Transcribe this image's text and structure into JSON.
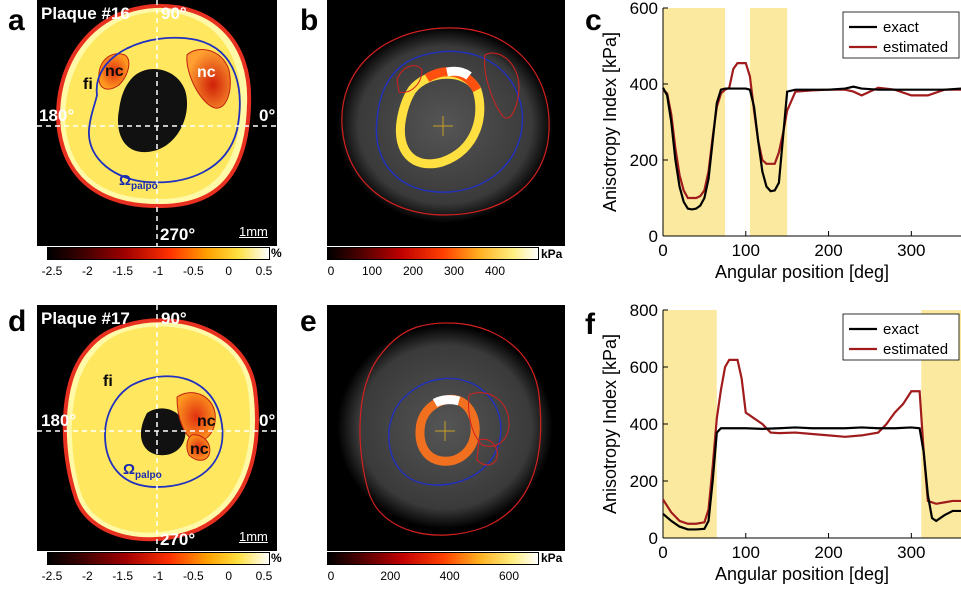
{
  "panels": {
    "a": {
      "letter": "a",
      "title": "Plaque #16",
      "angle_90": "90°",
      "angle_0": "0°",
      "angle_180": "180°",
      "angle_270": "270°",
      "fi": "fi",
      "nc1": "nc",
      "nc2": "nc",
      "omega": "Ω",
      "omega_sub": "palpo",
      "scale": "1mm"
    },
    "b": {
      "letter": "b"
    },
    "c": {
      "letter": "c"
    },
    "d": {
      "letter": "d",
      "title": "Plaque #17",
      "angle_90": "90°",
      "angle_0": "0°",
      "angle_180": "180°",
      "angle_270": "270°",
      "fi": "fi",
      "nc1": "nc",
      "nc2": "nc",
      "omega": "Ω",
      "omega_sub": "palpo",
      "scale": "1mm"
    },
    "e": {
      "letter": "e"
    },
    "f": {
      "letter": "f"
    }
  },
  "colorbars": {
    "strain_top": {
      "unit": "%",
      "ticks": [
        "-2.5",
        "-2",
        "-1.5",
        "-1",
        "-0.5",
        "0",
        "0.5"
      ]
    },
    "modulus_top": {
      "unit": "kPa",
      "ticks": [
        "0",
        "100",
        "200",
        "300",
        "400"
      ]
    },
    "strain_bottom": {
      "unit": "%",
      "ticks": [
        "-2.5",
        "-2",
        "-1.5",
        "-1",
        "-0.5",
        "0",
        "0.5"
      ]
    },
    "modulus_bottom": {
      "unit": "kPa",
      "ticks": [
        "0",
        "200",
        "400",
        "600"
      ]
    }
  },
  "colors": {
    "exact": "#000000",
    "estimated": "#a01c1c",
    "highlight": "#fbe9a0",
    "contour_red": "#d42020",
    "contour_blue": "#2030c0"
  },
  "chart_data": [
    {
      "type": "line",
      "panel": "c",
      "xlabel": "Angular position [deg]",
      "ylabel": "Anisotropy Index [kPa]",
      "xlim": [
        0,
        360
      ],
      "ylim": [
        0,
        600
      ],
      "xticks": [
        0,
        100,
        200,
        300
      ],
      "yticks": [
        0,
        200,
        400,
        600
      ],
      "legend": "top-right",
      "highlight_ranges": [
        [
          0,
          75
        ],
        [
          105,
          150
        ]
      ],
      "series": [
        {
          "name": "exact",
          "x": [
            0,
            5,
            10,
            15,
            20,
            25,
            30,
            35,
            40,
            45,
            50,
            55,
            60,
            65,
            70,
            75,
            80,
            85,
            90,
            100,
            105,
            110,
            115,
            120,
            125,
            130,
            135,
            140,
            145,
            150,
            160,
            180,
            200,
            220,
            230,
            240,
            260,
            280,
            300,
            320,
            340,
            360
          ],
          "values": [
            390,
            370,
            300,
            200,
            130,
            90,
            72,
            70,
            72,
            80,
            100,
            150,
            250,
            350,
            385,
            388,
            388,
            388,
            388,
            388,
            385,
            340,
            250,
            170,
            130,
            118,
            120,
            140,
            260,
            380,
            385,
            385,
            385,
            388,
            393,
            388,
            385,
            385,
            385,
            385,
            385,
            388
          ]
        },
        {
          "name": "estimated",
          "x": [
            0,
            5,
            10,
            15,
            20,
            25,
            30,
            35,
            40,
            45,
            50,
            55,
            60,
            65,
            70,
            75,
            80,
            85,
            90,
            100,
            105,
            110,
            115,
            120,
            125,
            130,
            135,
            140,
            145,
            150,
            160,
            180,
            200,
            220,
            230,
            240,
            260,
            280,
            300,
            320,
            340,
            360
          ],
          "values": [
            385,
            375,
            320,
            230,
            160,
            120,
            100,
            100,
            100,
            105,
            120,
            170,
            260,
            340,
            375,
            385,
            390,
            440,
            455,
            455,
            420,
            330,
            250,
            200,
            190,
            190,
            190,
            220,
            270,
            330,
            380,
            383,
            385,
            385,
            380,
            370,
            390,
            385,
            370,
            370,
            385,
            385
          ]
        }
      ]
    },
    {
      "type": "line",
      "panel": "f",
      "xlabel": "Angular position [deg]",
      "ylabel": "Anisotropy Index [kPa]",
      "xlim": [
        0,
        360
      ],
      "ylim": [
        0,
        800
      ],
      "xticks": [
        0,
        100,
        200,
        300
      ],
      "yticks": [
        0,
        200,
        400,
        600,
        800
      ],
      "legend": "top-right",
      "highlight_ranges": [
        [
          0,
          65
        ],
        [
          312,
          360
        ]
      ],
      "series": [
        {
          "name": "exact",
          "x": [
            0,
            10,
            20,
            30,
            40,
            50,
            55,
            60,
            65,
            70,
            80,
            100,
            120,
            140,
            160,
            180,
            200,
            220,
            240,
            260,
            280,
            300,
            310,
            315,
            320,
            325,
            330,
            340,
            350,
            360
          ],
          "values": [
            85,
            60,
            40,
            30,
            30,
            32,
            60,
            200,
            370,
            385,
            385,
            385,
            383,
            385,
            388,
            385,
            385,
            385,
            388,
            385,
            385,
            388,
            385,
            300,
            150,
            70,
            60,
            80,
            95,
            95
          ]
        },
        {
          "name": "estimated",
          "x": [
            0,
            10,
            20,
            30,
            40,
            50,
            55,
            60,
            65,
            70,
            75,
            80,
            90,
            95,
            100,
            110,
            120,
            130,
            140,
            160,
            180,
            200,
            220,
            240,
            260,
            270,
            280,
            290,
            300,
            310,
            315,
            320,
            330,
            340,
            350,
            360
          ],
          "values": [
            135,
            90,
            60,
            50,
            50,
            55,
            100,
            250,
            420,
            520,
            600,
            625,
            625,
            560,
            440,
            420,
            400,
            370,
            368,
            370,
            365,
            360,
            355,
            360,
            370,
            400,
            440,
            470,
            515,
            515,
            300,
            130,
            120,
            125,
            130,
            130
          ]
        }
      ]
    }
  ]
}
